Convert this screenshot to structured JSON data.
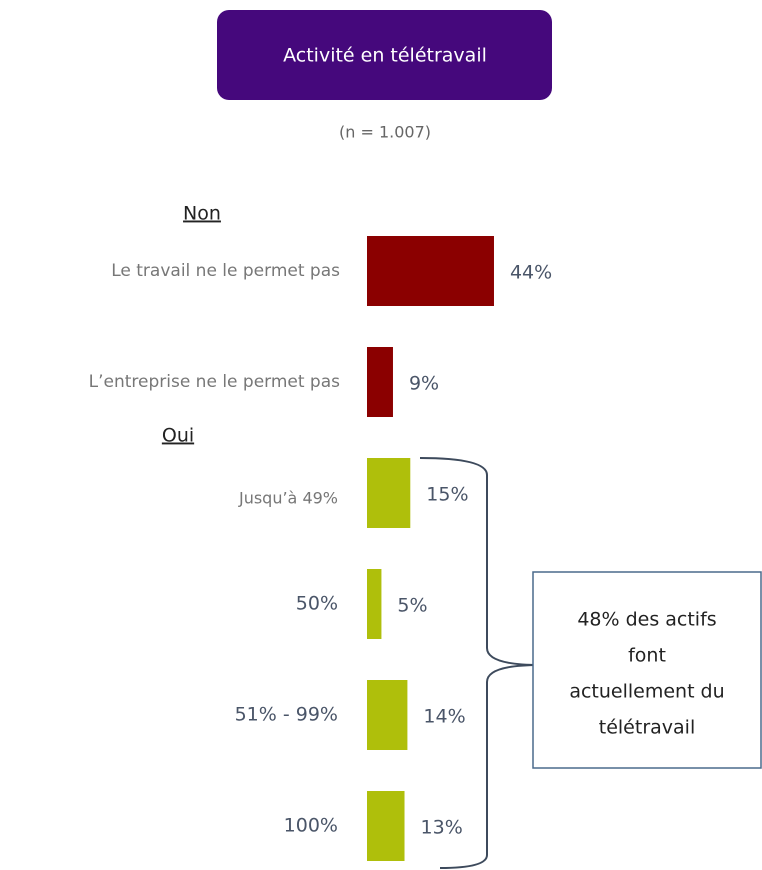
{
  "chart_data": {
    "type": "bar",
    "title": "Activité en télétravail",
    "subtitle": "(n = 1.007)",
    "groups": [
      {
        "label": "Non",
        "start": 0
      },
      {
        "label": "Oui",
        "start": 2
      }
    ],
    "categories": [
      "Le travail ne le permet pas",
      "L’entreprise ne le permet pas",
      "Jusqu’à 49%",
      "50%",
      "51%  - 99%",
      "100%"
    ],
    "values": [
      44,
      9,
      15,
      5,
      14,
      13
    ],
    "value_labels": [
      "44%",
      "9%",
      "15%",
      "5%",
      "14%",
      "13%"
    ],
    "colors": [
      "#8b0000",
      "#8b0000",
      "#afbf0b",
      "#afbf0b",
      "#afbf0b",
      "#afbf0b"
    ],
    "annotation": [
      "48% des actifs",
      "font",
      "actuellement du",
      "télétravail"
    ]
  }
}
